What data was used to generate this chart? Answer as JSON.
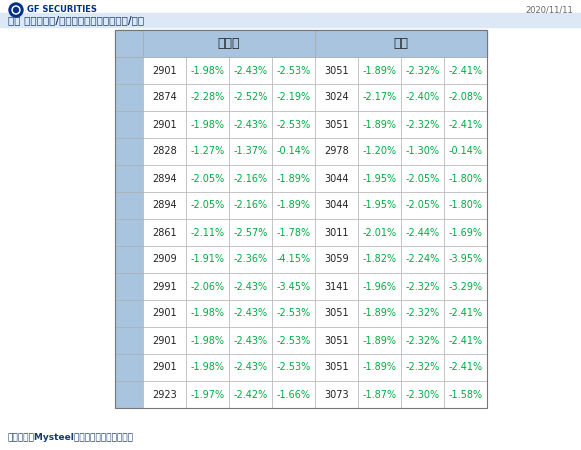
{
  "title": "品种 全国螺纹钢/热卷基差统计（单位：元/吨）",
  "subtitle_date": "2020/11/11",
  "logo_text": "GF SECURITIES",
  "螺纹钢_label": "螺纹钢",
  "热卷_label": "热卷",
  "rows": [
    [
      "2901",
      "-1.98%",
      "-2.43%",
      "-2.53%",
      "3051",
      "-1.89%",
      "-2.32%",
      "-2.41%"
    ],
    [
      "2874",
      "-2.28%",
      "-2.52%",
      "-2.19%",
      "3024",
      "-2.17%",
      "-2.40%",
      "-2.08%"
    ],
    [
      "2901",
      "-1.98%",
      "-2.43%",
      "-2.53%",
      "3051",
      "-1.89%",
      "-2.32%",
      "-2.41%"
    ],
    [
      "2828",
      "-1.27%",
      "-1.37%",
      "-0.14%",
      "2978",
      "-1.20%",
      "-1.30%",
      "-0.14%"
    ],
    [
      "2894",
      "-2.05%",
      "-2.16%",
      "-1.89%",
      "3044",
      "-1.95%",
      "-2.05%",
      "-1.80%"
    ],
    [
      "2894",
      "-2.05%",
      "-2.16%",
      "-1.89%",
      "3044",
      "-1.95%",
      "-2.05%",
      "-1.80%"
    ],
    [
      "2861",
      "-2.11%",
      "-2.57%",
      "-1.78%",
      "3011",
      "-2.01%",
      "-2.44%",
      "-1.69%"
    ],
    [
      "2909",
      "-1.91%",
      "-2.36%",
      "-4.15%",
      "3059",
      "-1.82%",
      "-2.24%",
      "-3.95%"
    ],
    [
      "2991",
      "-2.06%",
      "-2.43%",
      "-3.45%",
      "3141",
      "-1.96%",
      "-2.32%",
      "-3.29%"
    ],
    [
      "2901",
      "-1.98%",
      "-2.43%",
      "-2.53%",
      "3051",
      "-1.89%",
      "-2.32%",
      "-2.41%"
    ],
    [
      "2901",
      "-1.98%",
      "-2.43%",
      "-2.53%",
      "3051",
      "-1.89%",
      "-2.32%",
      "-2.41%"
    ],
    [
      "2901",
      "-1.98%",
      "-2.43%",
      "-2.53%",
      "3051",
      "-1.89%",
      "-2.32%",
      "-2.41%"
    ],
    [
      "2923",
      "-1.97%",
      "-2.42%",
      "-1.66%",
      "3073",
      "-1.87%",
      "-2.30%",
      "-1.58%"
    ]
  ],
  "footer": "数据来源：Mysteel、广发期货发展研究中心",
  "header_bg": "#a8c4de",
  "cell_bg": "#ffffff",
  "price_color": "#222222",
  "pct_color": "#00aa44",
  "title_color": "#1a3a6e",
  "footer_color": "#1a3a6e",
  "border_color": "#aaaaaa",
  "logo_blue": "#003087",
  "header_text_color": "#222222"
}
